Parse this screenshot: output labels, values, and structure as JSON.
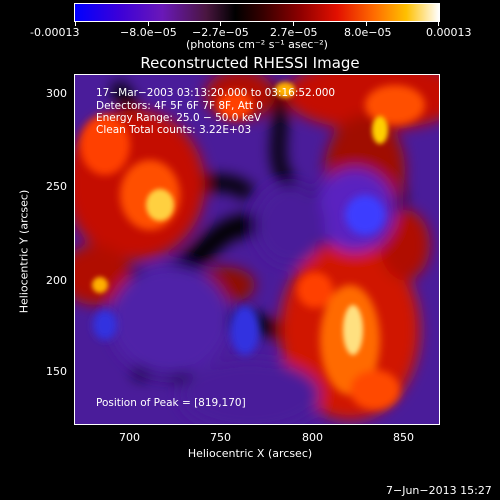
{
  "colorbar": {
    "ticks": [
      "-0.00013",
      "−8.0e−05",
      "−2.7e−05",
      "2.7e−05",
      "8.0e−05",
      "0.00013"
    ],
    "units": "(photons cm⁻² s⁻¹ asec⁻²)"
  },
  "title": "Reconstructed RHESSI Image",
  "overlay": {
    "line1": "17−Mar−2003 03:13:20.000 to 03:16:52.000",
    "line2": "Detectors: 4F 5F 6F 7F 8F, Att 0",
    "line3": "Energy Range: 25.0 − 50.0 keV",
    "line4": "Clean    Total counts: 3.22E+03",
    "peak": "Position of Peak = [819,170]"
  },
  "axes": {
    "xlabel": "Heliocentric X (arcsec)",
    "ylabel": "Heliocentric Y (arcsec)",
    "xticks": [
      "700",
      "750",
      "800",
      "850"
    ],
    "yticks": [
      "300",
      "250",
      "200",
      "150"
    ]
  },
  "footer": {
    "date": "7−Jun−2013 15:27"
  },
  "colors": {
    "background": "#000000",
    "frame": "#ffffff"
  }
}
